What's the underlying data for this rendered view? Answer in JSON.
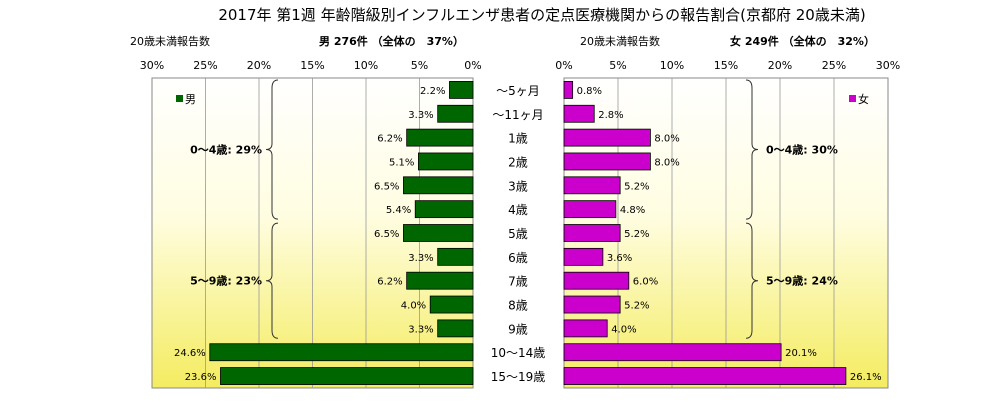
{
  "title": "2017年 第1週 年齢階級別インフルエンザ患者の定点医療機関からの報告割合(京都府 20歳未満)",
  "male": {
    "header_left": "20歳未満報告数",
    "header_right": "男 276件 （全体の　37%）",
    "legend": "男",
    "color": "#006600"
  },
  "female": {
    "header_left": "20歳未満報告数",
    "header_right": "女 249件 （全体の　32%）",
    "legend": "女",
    "color": "#CC00CC"
  },
  "chart_data": {
    "type": "bar",
    "orientation": "horizontal-butterfly",
    "categories": [
      "～5ヶ月",
      "～11ヶ月",
      "1歳",
      "2歳",
      "3歳",
      "4歳",
      "5歳",
      "6歳",
      "7歳",
      "8歳",
      "9歳",
      "10～14歳",
      "15～19歳"
    ],
    "series": [
      {
        "name": "男",
        "values": [
          2.2,
          3.3,
          6.2,
          5.1,
          6.5,
          5.4,
          6.5,
          3.3,
          6.2,
          4.0,
          3.3,
          24.6,
          23.6
        ]
      },
      {
        "name": "女",
        "values": [
          0.8,
          2.8,
          8.0,
          8.0,
          5.2,
          4.8,
          5.2,
          3.6,
          6.0,
          5.2,
          4.0,
          20.1,
          26.1
        ]
      }
    ],
    "value_labels": {
      "male": [
        "2.2%",
        "3.3%",
        "6.2%",
        "5.1%",
        "6.5%",
        "5.4%",
        "6.5%",
        "3.3%",
        "6.2%",
        "4.0%",
        "3.3%",
        "24.6%",
        "23.6%"
      ],
      "female": [
        "0.8%",
        "2.8%",
        "8.0%",
        "8.0%",
        "5.2%",
        "4.8%",
        "5.2%",
        "3.6%",
        "6.0%",
        "5.2%",
        "4.0%",
        "20.1%",
        "26.1%"
      ]
    },
    "xlim": [
      0,
      30
    ],
    "ticks_male": [
      "30%",
      "25%",
      "20%",
      "15%",
      "10%",
      "5%",
      "0%"
    ],
    "ticks_female": [
      "0%",
      "5%",
      "10%",
      "15%",
      "20%",
      "25%",
      "30%"
    ],
    "grid": true,
    "annotations": {
      "male": [
        {
          "text": "0～4歳: 29%",
          "from_index": 0,
          "to_index": 5
        },
        {
          "text": "5～9歳: 23%",
          "from_index": 6,
          "to_index": 10
        }
      ],
      "female": [
        {
          "text": "0～4歳: 30%",
          "from_index": 0,
          "to_index": 5
        },
        {
          "text": "5～9歳: 24%",
          "from_index": 6,
          "to_index": 10
        }
      ]
    }
  }
}
